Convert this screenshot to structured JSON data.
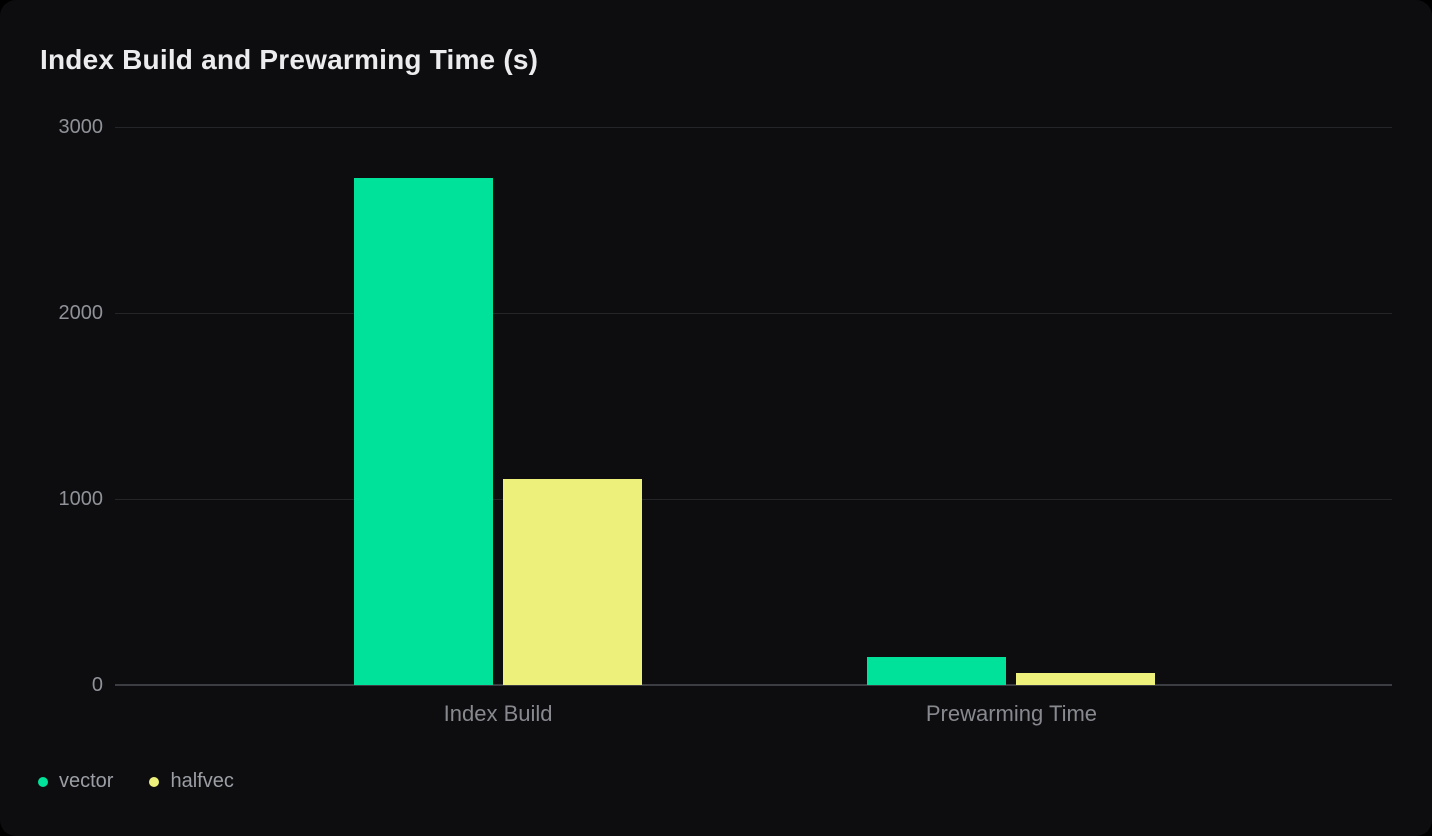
{
  "page": {
    "background": "#000000",
    "card_background": "#0d0d0f"
  },
  "colors": {
    "title_text": "#ececef",
    "tick_label": "#8f9298",
    "category_label": "#87898f",
    "legend_label": "#9b9ea4",
    "gridline": "#232529",
    "zero_line": "#3b3d42"
  },
  "chart_data": {
    "type": "bar",
    "title": "Index Build and Prewarming Time (s)",
    "categories": [
      "Index Build",
      "Prewarming Time"
    ],
    "series": [
      {
        "name": "vector",
        "color": "#00e299",
        "values": [
          2725,
          150
        ]
      },
      {
        "name": "halfvec",
        "color": "#edf07a",
        "values": [
          1105,
          65
        ]
      }
    ],
    "ylim": [
      0,
      3000
    ],
    "yticks": [
      0,
      1000,
      2000,
      3000
    ],
    "xlabel": "",
    "ylabel": "",
    "grid": true,
    "legend_position": "bottom-left"
  }
}
